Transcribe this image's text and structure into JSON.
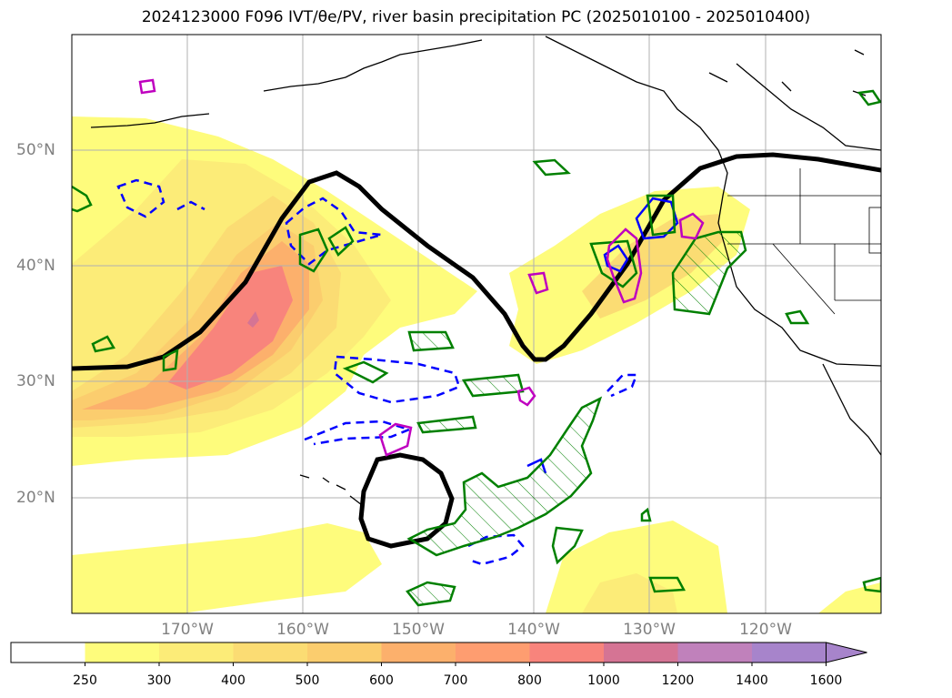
{
  "title": "2024123000 F096 IVT/θe/PV, river basin precipitation PC (2025010100 - 2025010400)",
  "latitude_labels": [
    "50°N",
    "40°N",
    "30°N",
    "20°N"
  ],
  "longitude_labels": [
    "170°W",
    "160°W",
    "150°W",
    "140°W",
    "130°W",
    "120°W"
  ],
  "colorbar": {
    "ticks": [
      "250",
      "300",
      "400",
      "500",
      "600",
      "700",
      "800",
      "1000",
      "1200",
      "1400",
      "1600"
    ],
    "colors": [
      "#ffffff",
      "#fefc7c",
      "#fcec78",
      "#fbdc73",
      "#fbcd6e",
      "#fcb06c",
      "#fe9d70",
      "#f8847c",
      "#d57494",
      "#c081bb",
      "#a784cb"
    ],
    "extend": "max"
  },
  "legend_colors": {
    "theta_e_contour": "#000000",
    "pv_contour": "#0000ff",
    "precip_pc_positive": "#008000",
    "precip_pc_alt": "#bf00bf"
  },
  "map_extent": {
    "lon_min": 180,
    "lon_max": 110,
    "lat_min": 10,
    "lat_max": 60,
    "grid": true
  }
}
